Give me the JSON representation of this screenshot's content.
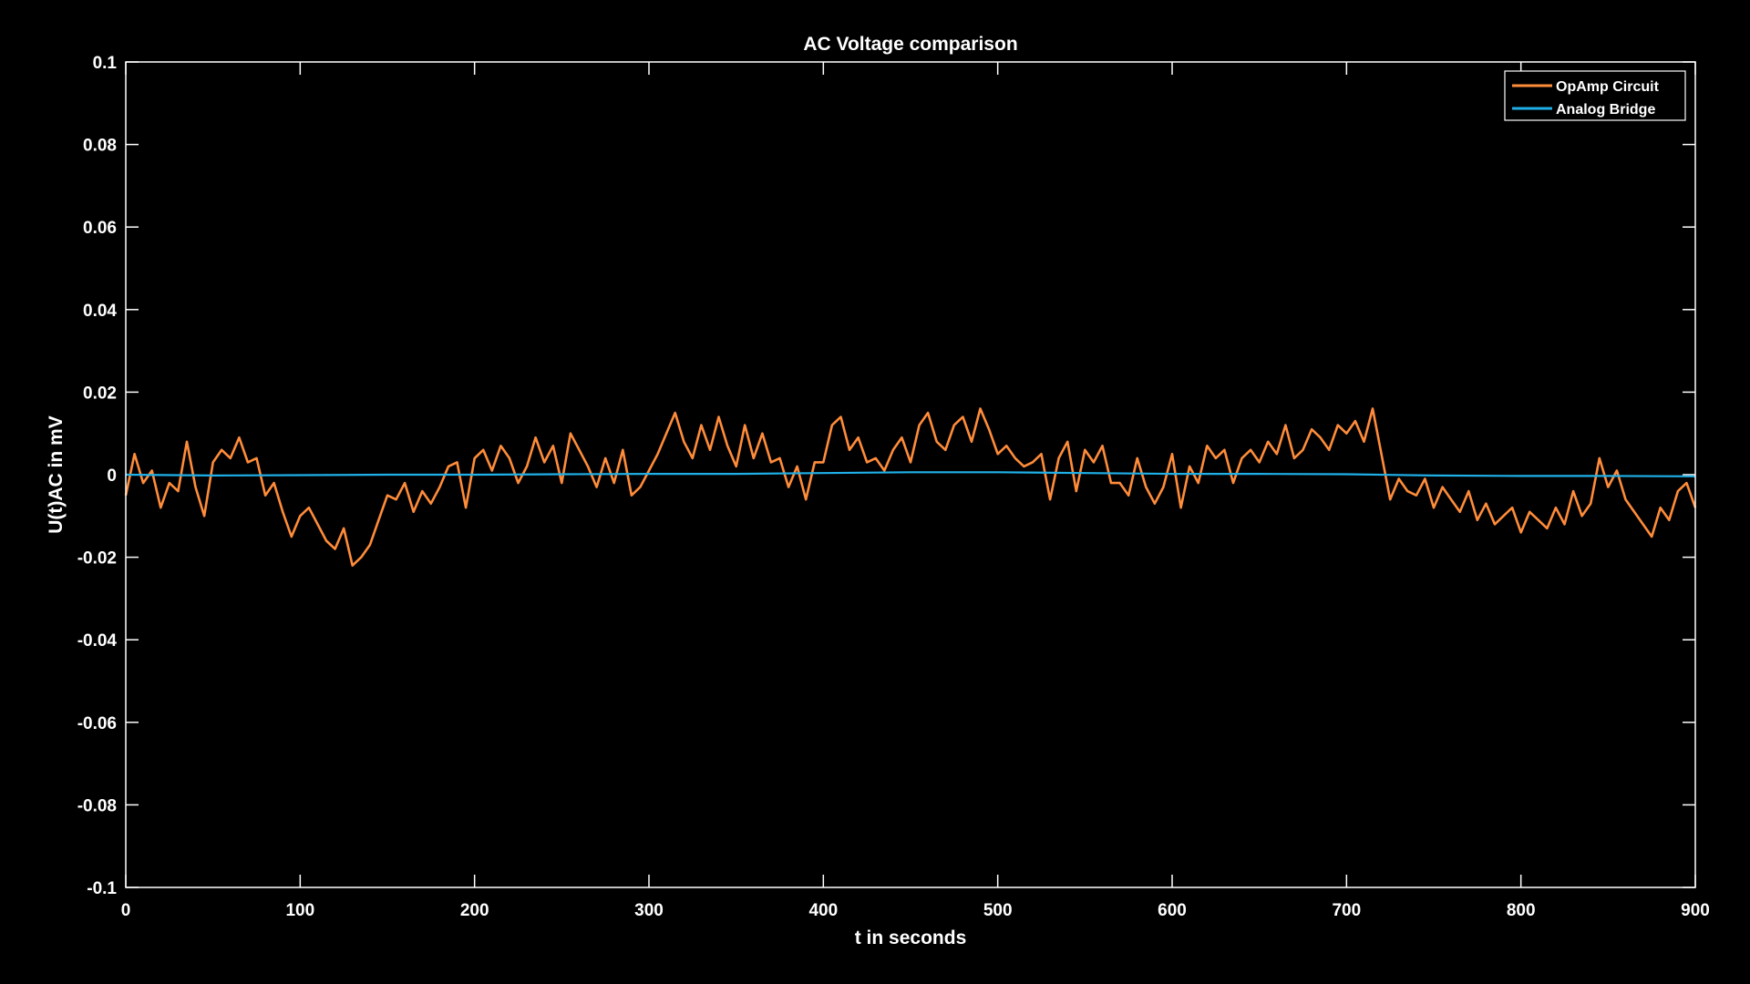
{
  "chart_data": {
    "type": "line",
    "title": "AC Voltage comparison",
    "xlabel": "t in seconds",
    "ylabel": "U(t)AC in mV",
    "xlim": [
      0,
      900
    ],
    "ylim": [
      -0.1,
      0.1
    ],
    "xticks": [
      0,
      100,
      200,
      300,
      400,
      500,
      600,
      700,
      800,
      900
    ],
    "xtick_labels": [
      "0",
      "100",
      "200",
      "300",
      "400",
      "500",
      "600",
      "700",
      "800",
      "900"
    ],
    "yticks": [
      -0.1,
      -0.08,
      -0.06,
      -0.04,
      -0.02,
      0,
      0.02,
      0.04,
      0.06,
      0.08,
      0.1
    ],
    "ytick_labels": [
      "-0.1",
      "-0.08",
      "-0.06",
      "-0.04",
      "-0.02",
      "0",
      "0.02",
      "0.04",
      "0.06",
      "0.08",
      "0.1"
    ],
    "grid": false,
    "legend_position": "top-right",
    "background": "#000000",
    "axis_color": "#ffffff",
    "series": [
      {
        "name": "OpAmp Circuit",
        "color": "#ff8c3a",
        "x": [
          0,
          5,
          10,
          15,
          20,
          25,
          30,
          35,
          40,
          45,
          50,
          55,
          60,
          65,
          70,
          75,
          80,
          85,
          90,
          95,
          100,
          105,
          110,
          115,
          120,
          125,
          130,
          135,
          140,
          145,
          150,
          155,
          160,
          165,
          170,
          175,
          180,
          185,
          190,
          195,
          200,
          205,
          210,
          215,
          220,
          225,
          230,
          235,
          240,
          245,
          250,
          255,
          260,
          265,
          270,
          275,
          280,
          285,
          290,
          295,
          300,
          305,
          310,
          315,
          320,
          325,
          330,
          335,
          340,
          345,
          350,
          355,
          360,
          365,
          370,
          375,
          380,
          385,
          390,
          395,
          400,
          405,
          410,
          415,
          420,
          425,
          430,
          435,
          440,
          445,
          450,
          455,
          460,
          465,
          470,
          475,
          480,
          485,
          490,
          495,
          500,
          505,
          510,
          515,
          520,
          525,
          530,
          535,
          540,
          545,
          550,
          555,
          560,
          565,
          570,
          575,
          580,
          585,
          590,
          595,
          600,
          605,
          610,
          615,
          620,
          625,
          630,
          635,
          640,
          645,
          650,
          655,
          660,
          665,
          670,
          675,
          680,
          685,
          690,
          695,
          700,
          705,
          710,
          715,
          720,
          725,
          730,
          735,
          740,
          745,
          750,
          755,
          760,
          765,
          770,
          775,
          780,
          785,
          790,
          795,
          800,
          805,
          810,
          815,
          820,
          825,
          830,
          835,
          840,
          845,
          850,
          855,
          860,
          865,
          870,
          875,
          880,
          885,
          890,
          895,
          900
        ],
        "values": [
          -0.005,
          0.005,
          -0.002,
          0.001,
          -0.008,
          -0.002,
          -0.004,
          0.008,
          -0.003,
          -0.01,
          0.003,
          0.006,
          0.004,
          0.009,
          0.003,
          0.004,
          -0.005,
          -0.002,
          -0.009,
          -0.015,
          -0.01,
          -0.008,
          -0.012,
          -0.016,
          -0.018,
          -0.013,
          -0.022,
          -0.02,
          -0.017,
          -0.011,
          -0.005,
          -0.006,
          -0.002,
          -0.009,
          -0.004,
          -0.007,
          -0.003,
          0.002,
          0.003,
          -0.008,
          0.004,
          0.006,
          0.001,
          0.007,
          0.004,
          -0.002,
          0.002,
          0.009,
          0.003,
          0.007,
          -0.002,
          0.01,
          0.006,
          0.002,
          -0.003,
          0.004,
          -0.002,
          0.006,
          -0.005,
          -0.003,
          0.001,
          0.005,
          0.01,
          0.015,
          0.008,
          0.004,
          0.012,
          0.006,
          0.014,
          0.007,
          0.002,
          0.012,
          0.004,
          0.01,
          0.003,
          0.004,
          -0.003,
          0.002,
          -0.006,
          0.003,
          0.003,
          0.012,
          0.014,
          0.006,
          0.009,
          0.003,
          0.004,
          0.001,
          0.006,
          0.009,
          0.003,
          0.012,
          0.015,
          0.008,
          0.006,
          0.012,
          0.014,
          0.008,
          0.016,
          0.011,
          0.005,
          0.007,
          0.004,
          0.002,
          0.003,
          0.005,
          -0.006,
          0.004,
          0.008,
          -0.004,
          0.006,
          0.003,
          0.007,
          -0.002,
          -0.002,
          -0.005,
          0.004,
          -0.003,
          -0.007,
          -0.003,
          0.005,
          -0.008,
          0.002,
          -0.002,
          0.007,
          0.004,
          0.006,
          -0.002,
          0.004,
          0.006,
          0.003,
          0.008,
          0.005,
          0.012,
          0.004,
          0.006,
          0.011,
          0.009,
          0.006,
          0.012,
          0.01,
          0.013,
          0.008,
          0.016,
          0.005,
          -0.006,
          -0.001,
          -0.004,
          -0.005,
          -0.001,
          -0.008,
          -0.003,
          -0.006,
          -0.009,
          -0.004,
          -0.011,
          -0.007,
          -0.012,
          -0.01,
          -0.008,
          -0.014,
          -0.009,
          -0.011,
          -0.013,
          -0.008,
          -0.012,
          -0.004,
          -0.01,
          -0.007,
          0.004,
          -0.003,
          0.001,
          -0.006,
          -0.009,
          -0.012,
          -0.015,
          -0.008,
          -0.011,
          -0.004,
          -0.002,
          -0.008
        ]
      },
      {
        "name": "Analog Bridge",
        "color": "#1fb0e8",
        "x": [
          0,
          50,
          100,
          150,
          200,
          250,
          300,
          350,
          400,
          450,
          500,
          550,
          600,
          650,
          700,
          750,
          800,
          850,
          900
        ],
        "values": [
          0.0,
          -0.0002,
          -0.0001,
          0.0,
          0.0,
          0.0001,
          0.0002,
          0.0002,
          0.0004,
          0.0006,
          0.0006,
          0.0004,
          0.0002,
          0.0002,
          0.0001,
          -0.0002,
          -0.0003,
          -0.0003,
          -0.0004
        ]
      }
    ]
  }
}
